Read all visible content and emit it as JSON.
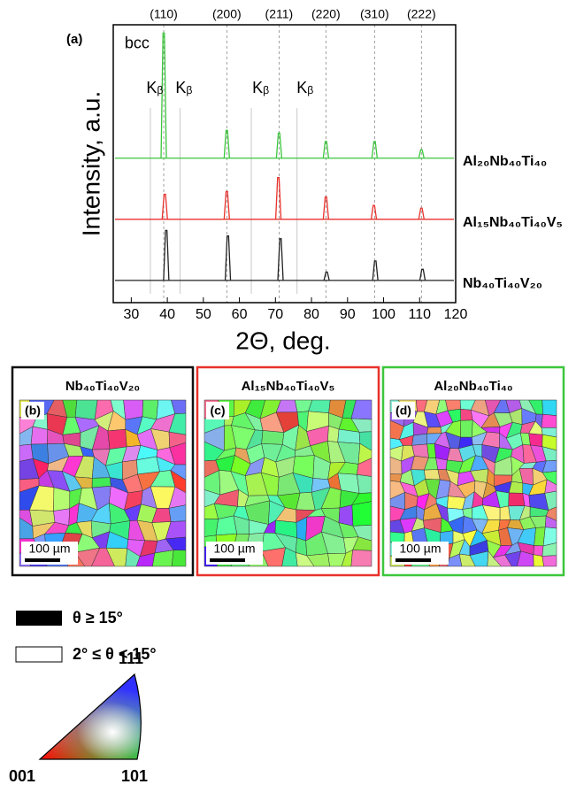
{
  "chart_data": {
    "type": "line",
    "panel_label": "(a)",
    "xlabel": "2Θ, deg.",
    "ylabel": "Intensity, a.u.",
    "xlim": [
      25,
      120
    ],
    "xticks": [
      30,
      40,
      50,
      60,
      70,
      80,
      90,
      100,
      110,
      120
    ],
    "ylim": [
      0,
      100
    ],
    "reflections": [
      {
        "label": "(110)",
        "x": 39
      },
      {
        "label": "(200)",
        "x": 56.5
      },
      {
        "label": "(211)",
        "x": 71
      },
      {
        "label": "(220)",
        "x": 84
      },
      {
        "label": "(310)",
        "x": 97.5
      },
      {
        "label": "(222)",
        "x": 110.5
      }
    ],
    "kbeta_lines": [
      35.3,
      43.5,
      63.3,
      76
    ],
    "annotations": [
      {
        "text": "bcc",
        "x": 31.6,
        "y": 93
      },
      {
        "text": "Kᵦ",
        "x": 36.5,
        "y": 77
      },
      {
        "text": "Kᵦ",
        "x": 44.6,
        "y": 77
      },
      {
        "text": "Kᵦ",
        "x": 65.9,
        "y": 77
      },
      {
        "text": "Kᵦ",
        "x": 78.2,
        "y": 77
      }
    ],
    "series": [
      {
        "name": "Al₂₀Nb₄₀Ti₄₀",
        "color": "#3cc63c",
        "baseline": 52,
        "x": [
          39,
          56.5,
          71,
          84,
          97.5,
          110.5
        ],
        "values": [
          97,
          62,
          61,
          58,
          58,
          55
        ]
      },
      {
        "name": "Al₁₅Nb₄₀Ti₄₀V₅",
        "color": "#e8322c",
        "baseline": 30,
        "x": [
          39.3,
          56.5,
          70.8,
          84,
          97.3,
          110.5
        ],
        "values": [
          39,
          40,
          45,
          38,
          35,
          34
        ]
      },
      {
        "name": "Nb₄₀Ti₄₀V₂₀",
        "color": "#222222",
        "baseline": 8,
        "x": [
          39.7,
          56.8,
          71.4,
          84.2,
          97.7,
          110.8
        ],
        "values": [
          26,
          24,
          23,
          11,
          15,
          12
        ]
      }
    ]
  },
  "panels": [
    {
      "title": "Nb₄₀Ti₄₀V₂₀",
      "label": "(b)",
      "scale_bar": "100 µm",
      "color": "#111111"
    },
    {
      "title": "Al₁₅Nb₄₀Ti₄₀V₅",
      "label": "(c)",
      "scale_bar": "100 µm",
      "color": "#e8322c"
    },
    {
      "title": "Al₂₀Nb₄₀Ti₄₀",
      "label": "(d)",
      "scale_bar": "100 µm",
      "color": "#3cc63c"
    }
  ],
  "boundary_legend": [
    "θ ≥ 15°",
    "2° ≤ θ < 15°"
  ],
  "ipf": {
    "top": "111",
    "left": "001",
    "right": "101"
  }
}
